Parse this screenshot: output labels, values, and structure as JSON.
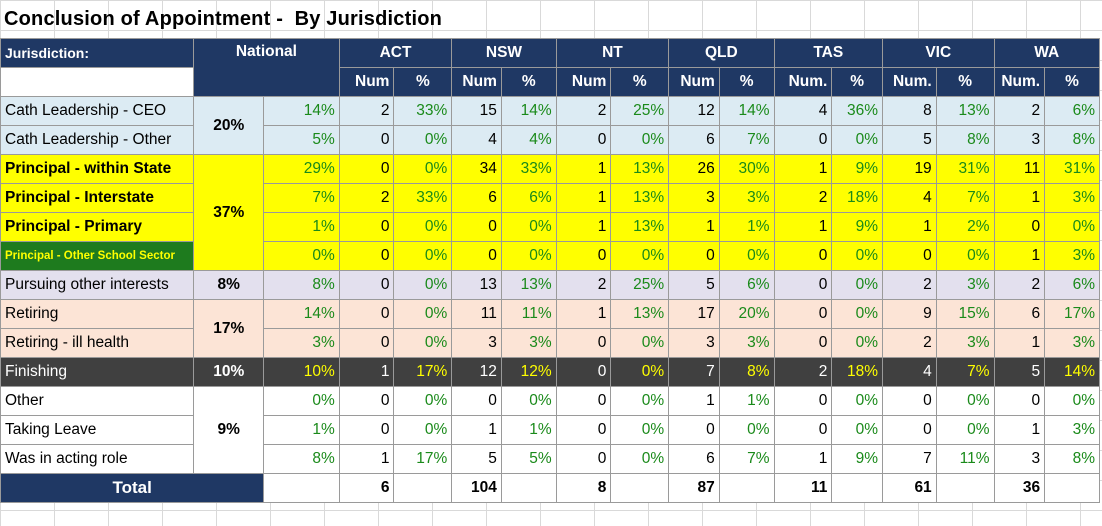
{
  "title": "Conclusion of Appointment -  By Jurisdiction",
  "header": {
    "jurisdiction_label": "Jurisdiction:",
    "national_label": "National",
    "jurisdictions": [
      "ACT",
      "NSW",
      "NT",
      "QLD",
      "TAS",
      "VIC",
      "WA"
    ],
    "subheaders": [
      [
        "Num",
        "%"
      ],
      [
        "Num",
        "%"
      ],
      [
        "Num",
        "%"
      ],
      [
        "Num",
        "%"
      ],
      [
        "Num.",
        "%"
      ],
      [
        "Num.",
        "%"
      ],
      [
        "Num.",
        "%"
      ]
    ]
  },
  "groups": {
    "cath": "20%",
    "principal": "37%",
    "pursuing": "8%",
    "retiring": "17%",
    "finishing": "10%",
    "other": "9%"
  },
  "rows": [
    {
      "label": "Cath Leadership - CEO",
      "national": "14%",
      "act": [
        "2",
        "33%"
      ],
      "nsw": [
        "15",
        "14%"
      ],
      "nt": [
        "2",
        "25%"
      ],
      "qld": [
        "12",
        "14%"
      ],
      "tas": [
        "4",
        "36%"
      ],
      "vic": [
        "8",
        "13%"
      ],
      "wa": [
        "2",
        "6%"
      ]
    },
    {
      "label": "Cath Leadership - Other",
      "national": "5%",
      "act": [
        "0",
        "0%"
      ],
      "nsw": [
        "4",
        "4%"
      ],
      "nt": [
        "0",
        "0%"
      ],
      "qld": [
        "6",
        "7%"
      ],
      "tas": [
        "0",
        "0%"
      ],
      "vic": [
        "5",
        "8%"
      ],
      "wa": [
        "3",
        "8%"
      ]
    },
    {
      "label": "Principal - within State",
      "national": "29%",
      "act": [
        "0",
        "0%"
      ],
      "nsw": [
        "34",
        "33%"
      ],
      "nt": [
        "1",
        "13%"
      ],
      "qld": [
        "26",
        "30%"
      ],
      "tas": [
        "1",
        "9%"
      ],
      "vic": [
        "19",
        "31%"
      ],
      "wa": [
        "11",
        "31%"
      ]
    },
    {
      "label": "Principal - Interstate",
      "national": "7%",
      "act": [
        "2",
        "33%"
      ],
      "nsw": [
        "6",
        "6%"
      ],
      "nt": [
        "1",
        "13%"
      ],
      "qld": [
        "3",
        "3%"
      ],
      "tas": [
        "2",
        "18%"
      ],
      "vic": [
        "4",
        "7%"
      ],
      "wa": [
        "1",
        "3%"
      ]
    },
    {
      "label": "Principal - Primary",
      "national": "1%",
      "act": [
        "0",
        "0%"
      ],
      "nsw": [
        "0",
        "0%"
      ],
      "nt": [
        "1",
        "13%"
      ],
      "qld": [
        "1",
        "1%"
      ],
      "tas": [
        "1",
        "9%"
      ],
      "vic": [
        "1",
        "2%"
      ],
      "wa": [
        "0",
        "0%"
      ]
    },
    {
      "label": "Principal - Other School Sector",
      "national": "0%",
      "act": [
        "0",
        "0%"
      ],
      "nsw": [
        "0",
        "0%"
      ],
      "nt": [
        "0",
        "0%"
      ],
      "qld": [
        "0",
        "0%"
      ],
      "tas": [
        "0",
        "0%"
      ],
      "vic": [
        "0",
        "0%"
      ],
      "wa": [
        "1",
        "3%"
      ]
    },
    {
      "label": "Pursuing other interests",
      "national": "8%",
      "act": [
        "0",
        "0%"
      ],
      "nsw": [
        "13",
        "13%"
      ],
      "nt": [
        "2",
        "25%"
      ],
      "qld": [
        "5",
        "6%"
      ],
      "tas": [
        "0",
        "0%"
      ],
      "vic": [
        "2",
        "3%"
      ],
      "wa": [
        "2",
        "6%"
      ]
    },
    {
      "label": "Retiring",
      "national": "14%",
      "act": [
        "0",
        "0%"
      ],
      "nsw": [
        "11",
        "11%"
      ],
      "nt": [
        "1",
        "13%"
      ],
      "qld": [
        "17",
        "20%"
      ],
      "tas": [
        "0",
        "0%"
      ],
      "vic": [
        "9",
        "15%"
      ],
      "wa": [
        "6",
        "17%"
      ]
    },
    {
      "label": "Retiring - ill health",
      "national": "3%",
      "act": [
        "0",
        "0%"
      ],
      "nsw": [
        "3",
        "3%"
      ],
      "nt": [
        "0",
        "0%"
      ],
      "qld": [
        "3",
        "3%"
      ],
      "tas": [
        "0",
        "0%"
      ],
      "vic": [
        "2",
        "3%"
      ],
      "wa": [
        "1",
        "3%"
      ]
    },
    {
      "label": "Finishing",
      "national": "10%",
      "act": [
        "1",
        "17%"
      ],
      "nsw": [
        "12",
        "12%"
      ],
      "nt": [
        "0",
        "0%"
      ],
      "qld": [
        "7",
        "8%"
      ],
      "tas": [
        "2",
        "18%"
      ],
      "vic": [
        "4",
        "7%"
      ],
      "wa": [
        "5",
        "14%"
      ]
    },
    {
      "label": "Other",
      "national": "0%",
      "act": [
        "0",
        "0%"
      ],
      "nsw": [
        "0",
        "0%"
      ],
      "nt": [
        "0",
        "0%"
      ],
      "qld": [
        "1",
        "1%"
      ],
      "tas": [
        "0",
        "0%"
      ],
      "vic": [
        "0",
        "0%"
      ],
      "wa": [
        "0",
        "0%"
      ]
    },
    {
      "label": "Taking Leave",
      "national": "1%",
      "act": [
        "0",
        "0%"
      ],
      "nsw": [
        "1",
        "1%"
      ],
      "nt": [
        "0",
        "0%"
      ],
      "qld": [
        "0",
        "0%"
      ],
      "tas": [
        "0",
        "0%"
      ],
      "vic": [
        "0",
        "0%"
      ],
      "wa": [
        "1",
        "3%"
      ]
    },
    {
      "label": "Was in acting role",
      "national": "8%",
      "act": [
        "1",
        "17%"
      ],
      "nsw": [
        "5",
        "5%"
      ],
      "nt": [
        "0",
        "0%"
      ],
      "qld": [
        "6",
        "7%"
      ],
      "tas": [
        "1",
        "9%"
      ],
      "vic": [
        "7",
        "11%"
      ],
      "wa": [
        "3",
        "8%"
      ]
    }
  ],
  "total": {
    "label": "Total",
    "act": "6",
    "nsw": "104",
    "nt": "8",
    "qld": "87",
    "tas": "11",
    "vic": "61",
    "wa": "36"
  },
  "colors": {
    "header": "#1f3864",
    "cath": "#dcebf3",
    "principal": "#ffff00",
    "principal_other": "#1e7b1e",
    "pursuing": "#e3e0ee",
    "retiring": "#fce4d6",
    "finishing": "#404040",
    "percent_text": "#1a8a1a"
  }
}
